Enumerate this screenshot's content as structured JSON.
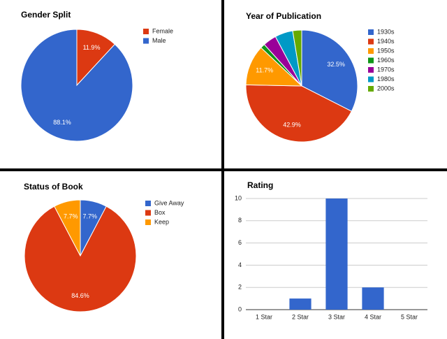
{
  "chart_data": [
    {
      "type": "pie",
      "title": "Gender Split",
      "categories": [
        "Female",
        "Male"
      ],
      "values": [
        11.9,
        88.1
      ],
      "value_labels": [
        "11.9%",
        "88.1%"
      ],
      "colors": [
        "#dc3912",
        "#3366cc"
      ]
    },
    {
      "type": "pie",
      "title": "Year of Publication",
      "categories": [
        "1930s",
        "1940s",
        "1950s",
        "1960s",
        "1970s",
        "1980s",
        "2000s"
      ],
      "values": [
        32.5,
        42.9,
        11.7,
        1.3,
        3.9,
        5.2,
        2.6
      ],
      "value_labels": [
        "32.5%",
        "42.9%",
        "11.7%",
        null,
        null,
        null,
        null
      ],
      "colors": [
        "#3366cc",
        "#dc3912",
        "#ff9900",
        "#109618",
        "#990099",
        "#0099c6",
        "#66aa00"
      ]
    },
    {
      "type": "pie",
      "title": "Status of Book",
      "categories": [
        "Give Away",
        "Box",
        "Keep"
      ],
      "values": [
        7.7,
        84.6,
        7.7
      ],
      "value_labels": [
        "7.7%",
        "84.6%",
        "7.7%"
      ],
      "colors": [
        "#3366cc",
        "#dc3912",
        "#ff9900"
      ]
    },
    {
      "type": "bar",
      "title": "Rating",
      "categories": [
        "1 Star",
        "2 Star",
        "3 Star",
        "4 Star",
        "5 Star"
      ],
      "values": [
        0,
        1,
        10,
        2,
        0
      ],
      "color": "#3366cc",
      "ylim": [
        0,
        10
      ],
      "yticks": [
        0,
        2,
        4,
        6,
        8,
        10
      ],
      "grid": true
    }
  ]
}
